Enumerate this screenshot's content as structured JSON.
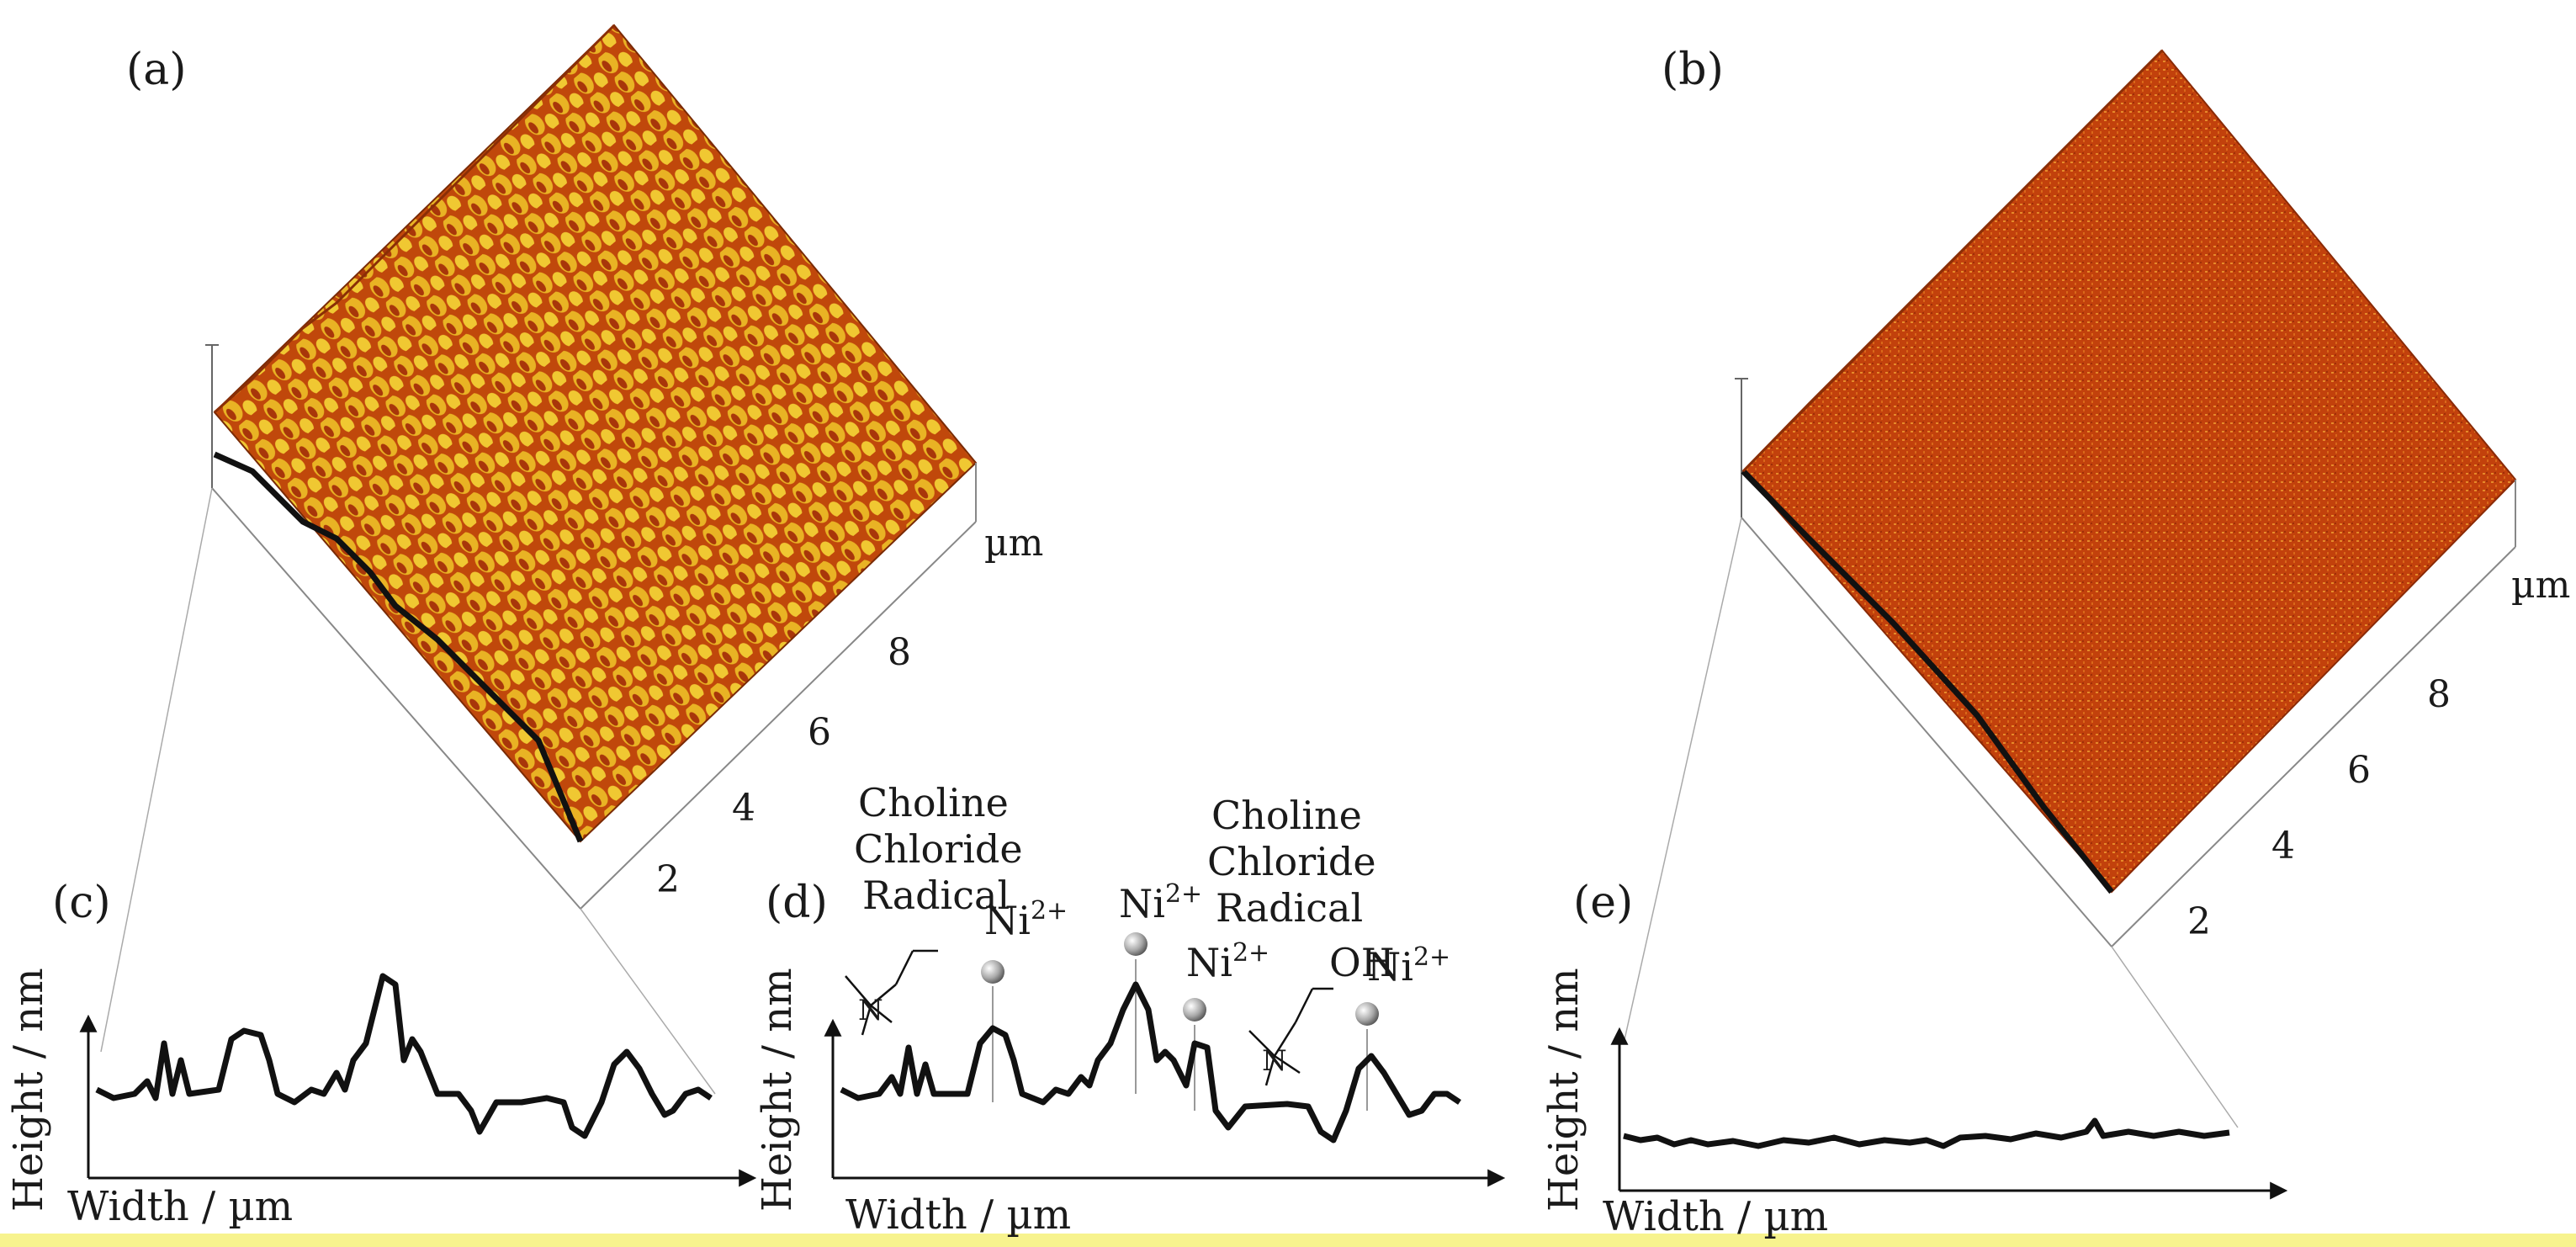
{
  "panels": {
    "a": {
      "label": "(a)",
      "unit": "µm",
      "ticks": [
        "2",
        "4",
        "6",
        "8"
      ]
    },
    "b": {
      "label": "(b)",
      "unit": "µm",
      "ticks": [
        "2",
        "4",
        "6",
        "8"
      ]
    },
    "c": {
      "label": "(c)",
      "ylabel": "Height / nm",
      "xlabel": "Width / µm"
    },
    "d": {
      "label": "(d)",
      "ylabel": "Height / nm",
      "xlabel": "Width / µm",
      "annotation_left": [
        "Choline",
        "Chloride",
        "Radical"
      ],
      "annotation_right": [
        "Choline",
        "Chloride",
        "Radical"
      ],
      "ion_base": "Ni",
      "ion_charge": "2+",
      "oh": "OH"
    },
    "e": {
      "label": "(e)",
      "ylabel": "Height / nm",
      "xlabel": "Width / µm"
    }
  },
  "colors": {
    "surface_a_dark": "#b83a08",
    "surface_a_light": "#e8b020",
    "surface_b": "#c2410c",
    "surface_b_light": "#e07a22",
    "profile": "#111111",
    "border_highlight": "#f5f08a"
  }
}
